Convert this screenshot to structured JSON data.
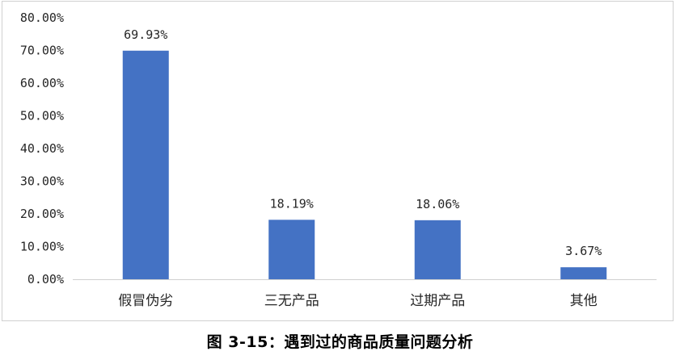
{
  "caption": "图 3-15：遇到过的商品质量问题分析",
  "chart_data": {
    "type": "bar",
    "categories": [
      "假冒伪劣",
      "三无产品",
      "过期产品",
      "其他"
    ],
    "values": [
      69.93,
      18.19,
      18.06,
      3.67
    ],
    "data_labels": [
      "69.93%",
      "18.19%",
      "18.06%",
      "3.67%"
    ],
    "ytick_values": [
      0,
      10,
      20,
      30,
      40,
      50,
      60,
      70,
      80
    ],
    "ytick_labels": [
      "0.00%",
      "10.00%",
      "20.00%",
      "30.00%",
      "40.00%",
      "50.00%",
      "60.00%",
      "70.00%",
      "80.00%"
    ],
    "ylim": [
      0,
      80
    ],
    "grid": false,
    "legend": "none",
    "bar_color": "#4472C4",
    "title": "",
    "xlabel": "",
    "ylabel": ""
  }
}
